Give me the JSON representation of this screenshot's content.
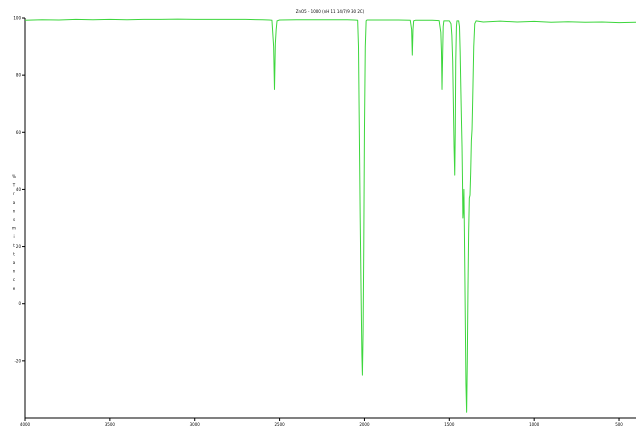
{
  "chart_data": {
    "type": "line",
    "title": "ZnO5 - 1000 (nH 11 14/7/9 30 2C)",
    "ylabel": "% T r a n s m i t t a n c e",
    "xlabel": "",
    "xlim": [
      4000,
      400
    ],
    "ylim": [
      -40,
      100
    ],
    "x_ticks": [
      {
        "value": 4000,
        "label": "4000"
      },
      {
        "value": 3500,
        "label": "3500"
      },
      {
        "value": 3000,
        "label": "3000"
      },
      {
        "value": 2500,
        "label": "2500"
      },
      {
        "value": 2000,
        "label": "2000"
      },
      {
        "value": 1500,
        "label": "1500"
      },
      {
        "value": 1000,
        "label": "1000"
      },
      {
        "value": 500,
        "label": "500"
      }
    ],
    "y_ticks": [
      {
        "value": 100,
        "label": "100"
      },
      {
        "value": 80,
        "label": "80"
      },
      {
        "value": 60,
        "label": "60"
      },
      {
        "value": 40,
        "label": "40"
      },
      {
        "value": 20,
        "label": "20"
      },
      {
        "value": 0,
        "label": "0"
      },
      {
        "value": -20,
        "label": "-20"
      }
    ],
    "series": [
      {
        "color": "#3dd63d",
        "points": [
          [
            4000,
            99.2
          ],
          [
            3900,
            99.4
          ],
          [
            3800,
            99.3
          ],
          [
            3700,
            99.5
          ],
          [
            3600,
            99.4
          ],
          [
            3500,
            99.5
          ],
          [
            3400,
            99.4
          ],
          [
            3300,
            99.5
          ],
          [
            3200,
            99.5
          ],
          [
            3100,
            99.6
          ],
          [
            3000,
            99.5
          ],
          [
            2900,
            99.5
          ],
          [
            2800,
            99.5
          ],
          [
            2700,
            99.5
          ],
          [
            2600,
            99.4
          ],
          [
            2560,
            99.3
          ],
          [
            2545,
            99.2
          ],
          [
            2535,
            90
          ],
          [
            2530,
            75
          ],
          [
            2525,
            91
          ],
          [
            2520,
            96
          ],
          [
            2515,
            99.0
          ],
          [
            2500,
            99.3
          ],
          [
            2400,
            99.4
          ],
          [
            2300,
            99.4
          ],
          [
            2200,
            99.4
          ],
          [
            2100,
            99.4
          ],
          [
            2060,
            99.3
          ],
          [
            2040,
            99.2
          ],
          [
            2035,
            90
          ],
          [
            2030,
            60
          ],
          [
            2025,
            30
          ],
          [
            2020,
            5
          ],
          [
            2015,
            -18
          ],
          [
            2012,
            -25
          ],
          [
            2008,
            -10
          ],
          [
            2004,
            20
          ],
          [
            2000,
            60
          ],
          [
            1995,
            90
          ],
          [
            1990,
            99.0
          ],
          [
            1985,
            99.3
          ],
          [
            1900,
            99.3
          ],
          [
            1800,
            99.3
          ],
          [
            1730,
            99.2
          ],
          [
            1722,
            96
          ],
          [
            1718,
            87
          ],
          [
            1714,
            96
          ],
          [
            1710,
            99.0
          ],
          [
            1700,
            99.2
          ],
          [
            1600,
            99.2
          ],
          [
            1560,
            99.1
          ],
          [
            1550,
            95
          ],
          [
            1546,
            88
          ],
          [
            1543,
            75
          ],
          [
            1540,
            85
          ],
          [
            1536,
            97
          ],
          [
            1532,
            99.0
          ],
          [
            1500,
            99.0
          ],
          [
            1490,
            98.0
          ],
          [
            1485,
            94
          ],
          [
            1480,
            85
          ],
          [
            1476,
            70
          ],
          [
            1472,
            55
          ],
          [
            1468,
            45
          ],
          [
            1465,
            60
          ],
          [
            1462,
            85
          ],
          [
            1458,
            97
          ],
          [
            1455,
            99.0
          ],
          [
            1445,
            99.0
          ],
          [
            1440,
            97
          ],
          [
            1436,
            88
          ],
          [
            1432,
            75
          ],
          [
            1428,
            63
          ],
          [
            1425,
            55
          ],
          [
            1422,
            42
          ],
          [
            1420,
            30
          ],
          [
            1417,
            33
          ],
          [
            1414,
            40
          ],
          [
            1411,
            25
          ],
          [
            1408,
            8
          ],
          [
            1405,
            -10
          ],
          [
            1402,
            -28
          ],
          [
            1398,
            -38
          ],
          [
            1394,
            -20
          ],
          [
            1390,
            5
          ],
          [
            1386,
            25
          ],
          [
            1382,
            37
          ],
          [
            1378,
            38
          ],
          [
            1374,
            46
          ],
          [
            1370,
            57
          ],
          [
            1366,
            61
          ],
          [
            1362,
            72
          ],
          [
            1356,
            90
          ],
          [
            1350,
            98
          ],
          [
            1342,
            99.0
          ],
          [
            1300,
            98.6
          ],
          [
            1200,
            98.9
          ],
          [
            1100,
            98.6
          ],
          [
            1000,
            98.8
          ],
          [
            900,
            98.5
          ],
          [
            800,
            98.7
          ],
          [
            700,
            98.5
          ],
          [
            600,
            98.6
          ],
          [
            500,
            98.4
          ],
          [
            400,
            98.5
          ]
        ]
      }
    ]
  }
}
